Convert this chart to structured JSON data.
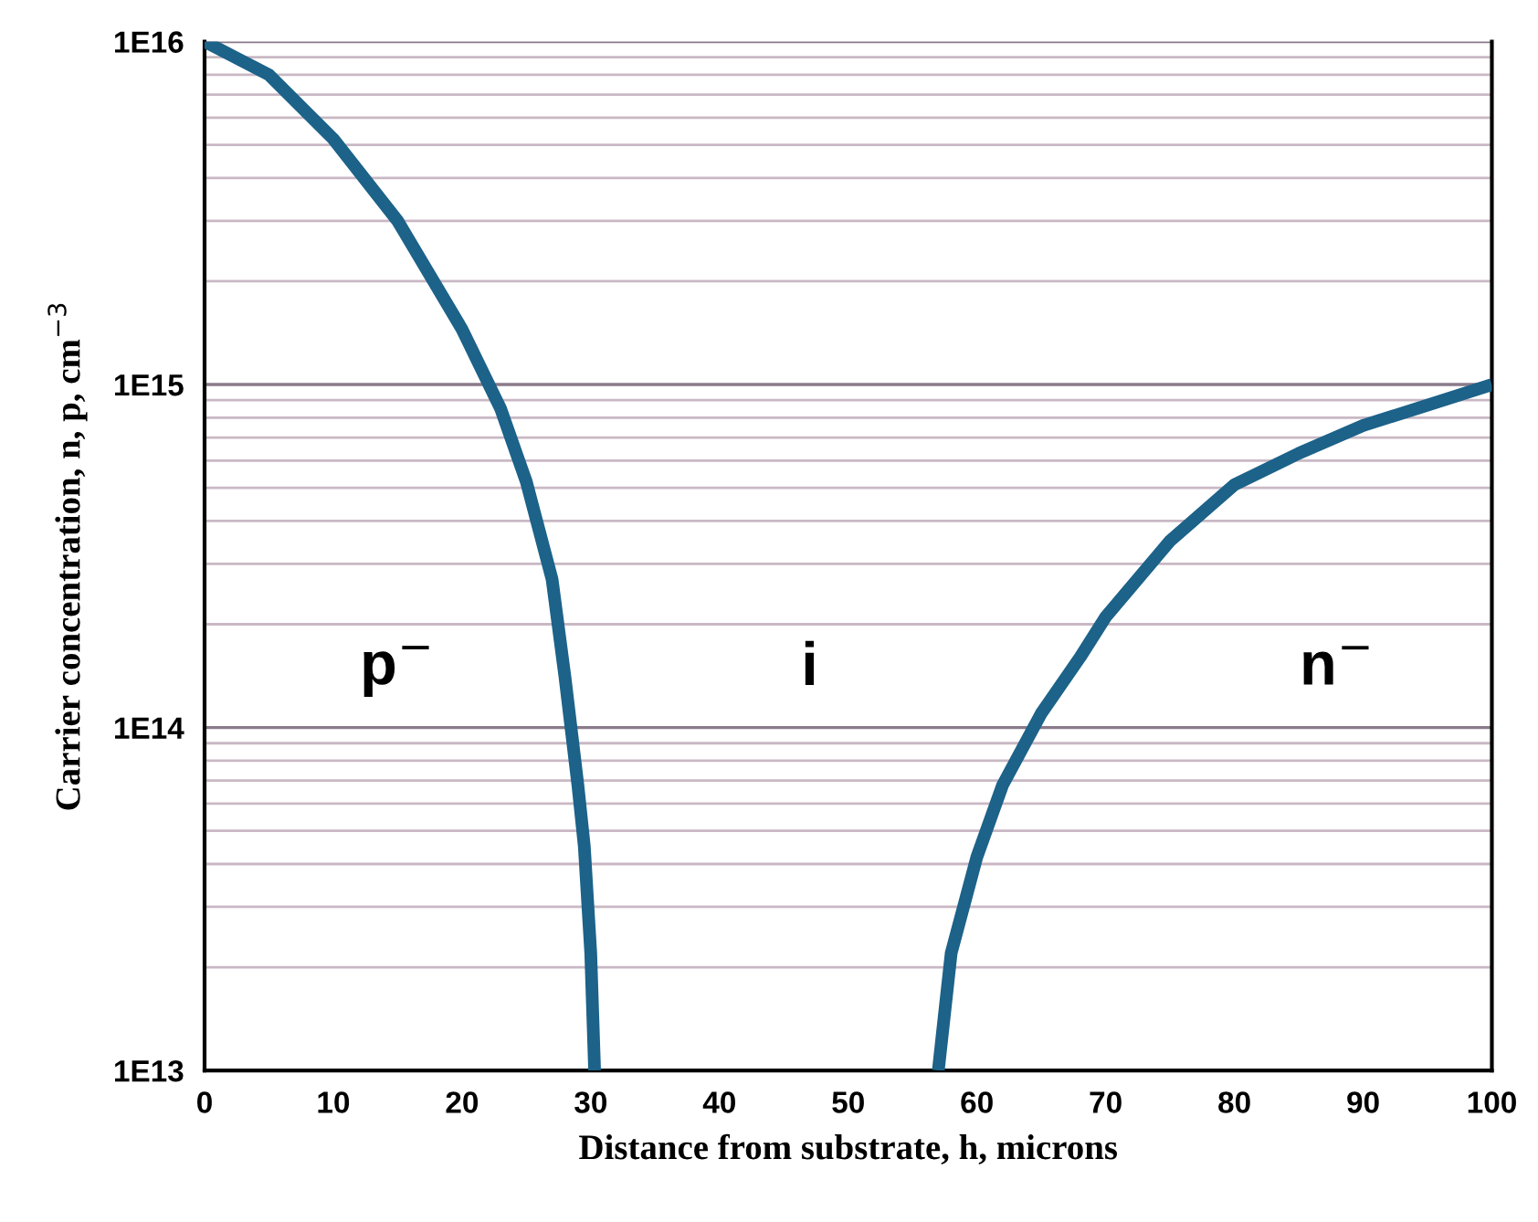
{
  "chart_data": {
    "type": "line",
    "xlabel": "Distance from substrate, h, microns",
    "ylabel": "Carrier concentration, n, p, cm$^{−3}$",
    "series": [
      {
        "color": "#1c6289",
        "x": [
          0,
          5,
          10,
          15,
          20,
          23,
          25,
          27,
          28,
          29,
          29.5,
          30,
          30.3
        ],
        "values": [
          1e+16,
          8000000000000000.0,
          5200000000000000.0,
          3000000000000000.0,
          1450000000000000.0,
          850000000000000.0,
          520000000000000.0,
          270000000000000.0,
          140000000000000.0,
          68000000000000.0,
          45000000000000.0,
          22000000000000.0,
          10000000000000.0
        ]
      },
      {
        "color": "#1c6289",
        "x": [
          57,
          58,
          60,
          62,
          65,
          68,
          70,
          75,
          80,
          85,
          90,
          95,
          100
        ],
        "values": [
          10000000000000.0,
          22000000000000.0,
          42000000000000.0,
          68000000000000.0,
          110000000000000.0,
          160000000000000.0,
          210000000000000.0,
          350000000000000.0,
          510000000000000.0,
          630000000000000.0,
          760000000000000.0,
          870000000000000.0,
          1000000000000000.0
        ]
      }
    ],
    "log": "y",
    "xlim": [
      0,
      100
    ],
    "ylim": [
      10000000000000.0,
      1e+16
    ],
    "xticks": [
      0,
      10,
      20,
      30,
      40,
      50,
      60,
      70,
      80,
      90,
      100
    ],
    "yticks": [
      {
        "value": 10000000000000.0,
        "label": "1E13"
      },
      {
        "value": 100000000000000.0,
        "label": "1E14"
      },
      {
        "value": 1000000000000000.0,
        "label": "1E15"
      },
      {
        "value": 1e+16,
        "label": "1E16"
      }
    ],
    "grid": "y",
    "marker": "none",
    "line_style": "solid",
    "annotations": [
      "p$^{−}$",
      "i",
      "n$^{−}$"
    ]
  }
}
